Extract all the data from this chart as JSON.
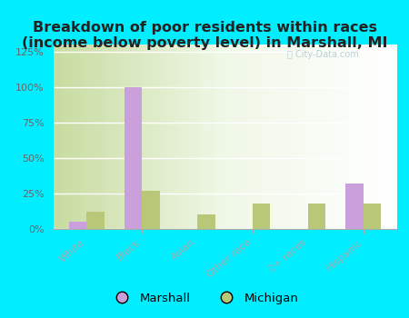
{
  "title": "Breakdown of poor residents within races\n(income below poverty level) in Marshall, MI",
  "categories": [
    "White",
    "Black",
    "Asian",
    "Other race",
    "2+ races",
    "Hispanic"
  ],
  "marshall_values": [
    5,
    100,
    0,
    0,
    0,
    32
  ],
  "michigan_values": [
    12,
    27,
    10,
    18,
    18,
    18
  ],
  "marshall_color": "#c9a0dc",
  "michigan_color": "#b8c878",
  "background_color": "#00eeff",
  "ylim": [
    0,
    130
  ],
  "yticks": [
    0,
    25,
    50,
    75,
    100,
    125
  ],
  "ytick_labels": [
    "0%",
    "25%",
    "50%",
    "75%",
    "100%",
    "125%"
  ],
  "legend_labels": [
    "Marshall",
    "Michigan"
  ],
  "title_fontsize": 11.5,
  "bar_width": 0.32
}
